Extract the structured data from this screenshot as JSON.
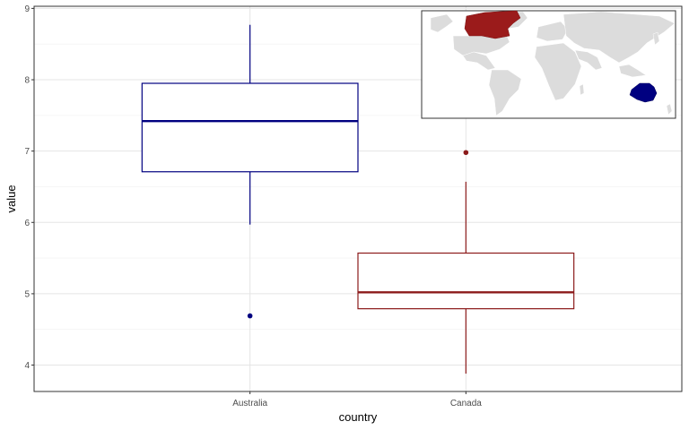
{
  "chart_data": {
    "type": "box",
    "xlabel": "country",
    "ylabel": "value",
    "ylim": [
      3.63,
      9.03
    ],
    "yticks": [
      4,
      5,
      6,
      7,
      8,
      9
    ],
    "grid": true,
    "categories": [
      "Australia",
      "Canada"
    ],
    "boxes": [
      {
        "category": "Australia",
        "color": "#000080",
        "whisker_low": 5.97,
        "q1": 6.71,
        "median": 7.42,
        "q3": 7.95,
        "whisker_high": 8.77,
        "outliers": [
          4.69
        ]
      },
      {
        "category": "Canada",
        "color": "#8b1a1a",
        "whisker_low": 3.88,
        "q1": 4.79,
        "median": 5.02,
        "q3": 5.57,
        "whisker_high": 6.57,
        "outliers": [
          6.98
        ]
      }
    ],
    "inset": {
      "type": "world-map",
      "highlighted": [
        {
          "country": "Canada",
          "color": "#9b1b1b"
        },
        {
          "country": "Australia",
          "color": "#000080"
        }
      ],
      "base_color": "#dcdcdc"
    }
  }
}
